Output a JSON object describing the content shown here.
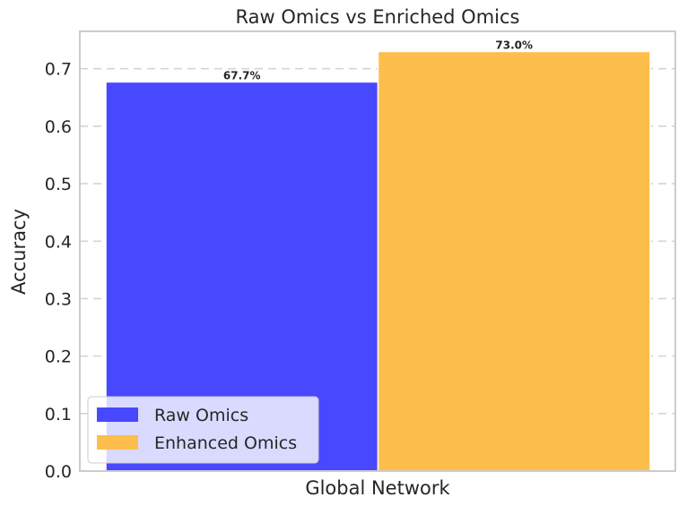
{
  "chart_data": {
    "type": "bar",
    "title": "Raw Omics vs Enriched Omics",
    "xlabel": "",
    "ylabel": "Accuracy",
    "categories": [
      "Global Network"
    ],
    "series": [
      {
        "name": "Raw Omics",
        "values": [
          0.677
        ],
        "label": "67.7%",
        "color": "#4848ff"
      },
      {
        "name": "Enhanced Omics",
        "values": [
          0.73
        ],
        "label": "73.0%",
        "color": "#fdbe4c"
      }
    ],
    "ylim": [
      0,
      0.765
    ],
    "yticks": [
      0.0,
      0.1,
      0.2,
      0.3,
      0.4,
      0.5,
      0.6,
      0.7
    ],
    "ytick_labels": [
      "0.0",
      "0.1",
      "0.2",
      "0.3",
      "0.4",
      "0.5",
      "0.6",
      "0.7"
    ],
    "grid": true,
    "legend_position": "lower-left"
  }
}
